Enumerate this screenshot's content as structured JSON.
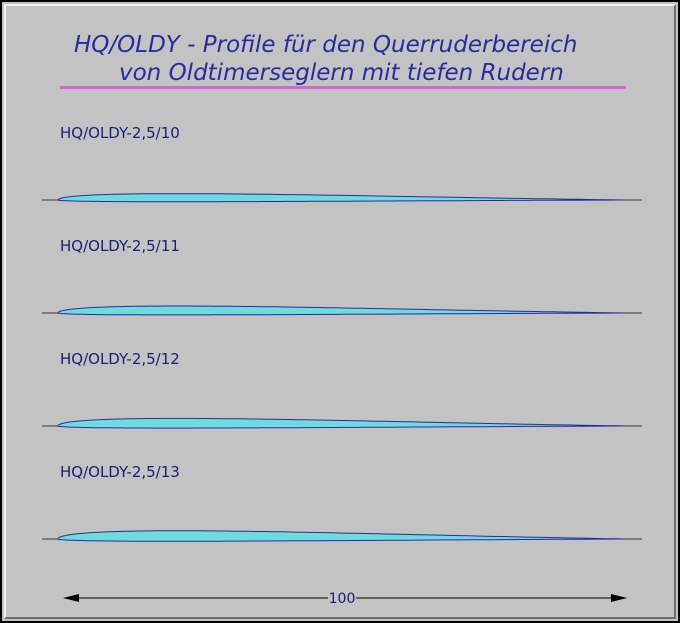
{
  "title": {
    "line1": "HQ/OLDY - Profile für den Querruderbereich",
    "line2": "von Oldtimerseglern mit tiefen Rudern"
  },
  "profiles": [
    {
      "name": "HQ/OLDY-2,5/10",
      "thickness_pct": 10
    },
    {
      "name": "HQ/OLDY-2,5/11",
      "thickness_pct": 11
    },
    {
      "name": "HQ/OLDY-2,5/12",
      "thickness_pct": 12
    },
    {
      "name": "HQ/OLDY-2,5/13",
      "thickness_pct": 13
    }
  ],
  "dimension": {
    "label": "100"
  },
  "colors": {
    "background": "#c3c3c3",
    "airfoil_fill": "#6edcdc",
    "airfoil_outline": "#2a2aa0",
    "title_text": "#2a2aa0",
    "title_rule": "#d466d4",
    "dimension_line": "#000000"
  }
}
